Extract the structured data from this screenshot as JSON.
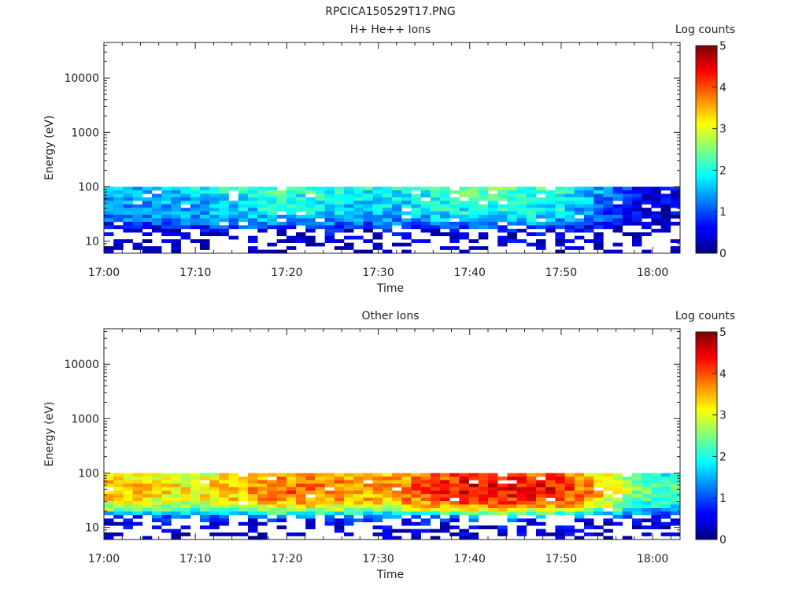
{
  "figure": {
    "title": "RPCICA150529T17.PNG"
  },
  "chart_data": [
    {
      "type": "heatmap",
      "title": "H+ He++ Ions",
      "xlabel": "Time",
      "ylabel": "Energy (eV)",
      "xlim": [
        "17:00",
        "18:03"
      ],
      "x_ticks": [
        "17:00",
        "17:10",
        "17:20",
        "17:30",
        "17:40",
        "17:50",
        "18:00"
      ],
      "ylim": [
        6,
        45000
      ],
      "y_scale": "log",
      "y_ticks": [
        10,
        100,
        1000,
        10000
      ],
      "y_tick_labels": [
        "10",
        "100",
        "1000",
        "10000"
      ],
      "colorbar": {
        "label": "Log counts",
        "range": [
          0,
          5
        ],
        "ticks": [
          "0",
          "1",
          "2",
          "3",
          "4",
          "5"
        ],
        "colormap": "jet"
      },
      "intensity_profile": {
        "description": "log counts per energy bin, averaged over time",
        "energy_eV": [
          95,
          85,
          75,
          65,
          55,
          48,
          42,
          36,
          31,
          27,
          23,
          20,
          17,
          14,
          12,
          10,
          9,
          8,
          7
        ],
        "log_counts": [
          1.9,
          1.8,
          1.7,
          1.65,
          1.6,
          1.6,
          1.55,
          1.5,
          1.4,
          1.3,
          1.1,
          0.8,
          0.5,
          0.4,
          0.3,
          0.3,
          0.2,
          0.2,
          0.1
        ]
      },
      "time_profile": {
        "description": "approximate peak log counts versus time",
        "time": [
          "17:00",
          "17:10",
          "17:20",
          "17:30",
          "17:40",
          "17:50",
          "18:00"
        ],
        "log_counts": [
          1.6,
          1.8,
          2.3,
          1.9,
          2.4,
          2.2,
          0.5
        ]
      },
      "signal_end": "18:03",
      "signal_energy_range_eV": [
        6,
        100
      ]
    },
    {
      "type": "heatmap",
      "title": "Other Ions",
      "xlabel": "Time",
      "ylabel": "Energy (eV)",
      "xlim": [
        "17:00",
        "18:03"
      ],
      "x_ticks": [
        "17:00",
        "17:10",
        "17:20",
        "17:30",
        "17:40",
        "17:50",
        "18:00"
      ],
      "ylim": [
        6,
        45000
      ],
      "y_scale": "log",
      "y_ticks": [
        10,
        100,
        1000,
        10000
      ],
      "y_tick_labels": [
        "10",
        "100",
        "1000",
        "10000"
      ],
      "colorbar": {
        "label": "Log counts",
        "range": [
          0,
          5
        ],
        "ticks": [
          "0",
          "1",
          "2",
          "3",
          "4",
          "5"
        ],
        "colormap": "jet"
      },
      "intensity_profile": {
        "description": "log counts per energy bin, averaged over time",
        "energy_eV": [
          95,
          85,
          75,
          65,
          55,
          48,
          42,
          36,
          31,
          27,
          23,
          20,
          17,
          14,
          12,
          10,
          9,
          8,
          7
        ],
        "log_counts": [
          3.5,
          3.6,
          3.7,
          3.8,
          3.8,
          3.8,
          3.7,
          3.6,
          3.4,
          3.1,
          2.7,
          2.0,
          1.2,
          0.8,
          0.5,
          0.4,
          0.3,
          0.3,
          0.2
        ]
      },
      "time_profile": {
        "description": "approximate peak log counts versus time",
        "time": [
          "17:00",
          "17:10",
          "17:20",
          "17:30",
          "17:40",
          "17:50",
          "18:00"
        ],
        "log_counts": [
          3.4,
          3.1,
          3.9,
          3.6,
          4.5,
          4.3,
          2.2
        ]
      },
      "signal_end": "18:03",
      "signal_energy_range_eV": [
        6,
        100
      ]
    }
  ]
}
